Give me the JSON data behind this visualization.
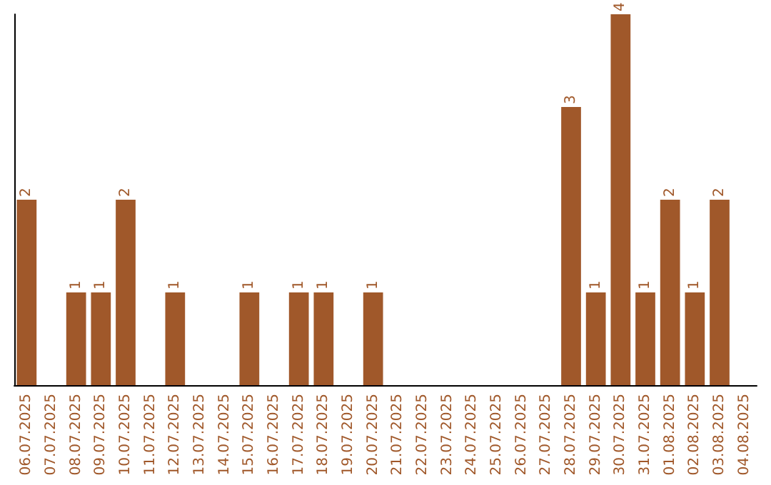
{
  "chart_data": {
    "type": "bar",
    "categories": [
      "06.07.2025",
      "07.07.2025",
      "08.07.2025",
      "09.07.2025",
      "10.07.2025",
      "11.07.2025",
      "12.07.2025",
      "13.07.2025",
      "14.07.2025",
      "15.07.2025",
      "16.07.2025",
      "17.07.2025",
      "18.07.2025",
      "19.07.2025",
      "20.07.2025",
      "21.07.2025",
      "22.07.2025",
      "23.07.2025",
      "24.07.2025",
      "25.07.2025",
      "26.07.2025",
      "27.07.2025",
      "28.07.2025",
      "29.07.2025",
      "30.07.2025",
      "31.07.2025",
      "01.08.2025",
      "02.08.2025",
      "03.08.2025",
      "04.08.2025"
    ],
    "values": [
      2,
      0,
      1,
      1,
      2,
      0,
      1,
      0,
      0,
      1,
      0,
      1,
      1,
      0,
      1,
      0,
      0,
      0,
      0,
      0,
      0,
      0,
      3,
      1,
      4,
      1,
      2,
      1,
      2,
      0
    ],
    "value_labels": [
      "2",
      null,
      "1",
      "1",
      "2",
      null,
      "1",
      null,
      null,
      "1",
      null,
      "1",
      "1",
      null,
      "1",
      null,
      null,
      null,
      null,
      null,
      null,
      null,
      "3",
      "1",
      "4",
      "1",
      "2",
      "1",
      "2",
      null
    ],
    "color": "#a0582a",
    "tick_labels": "x"
  }
}
